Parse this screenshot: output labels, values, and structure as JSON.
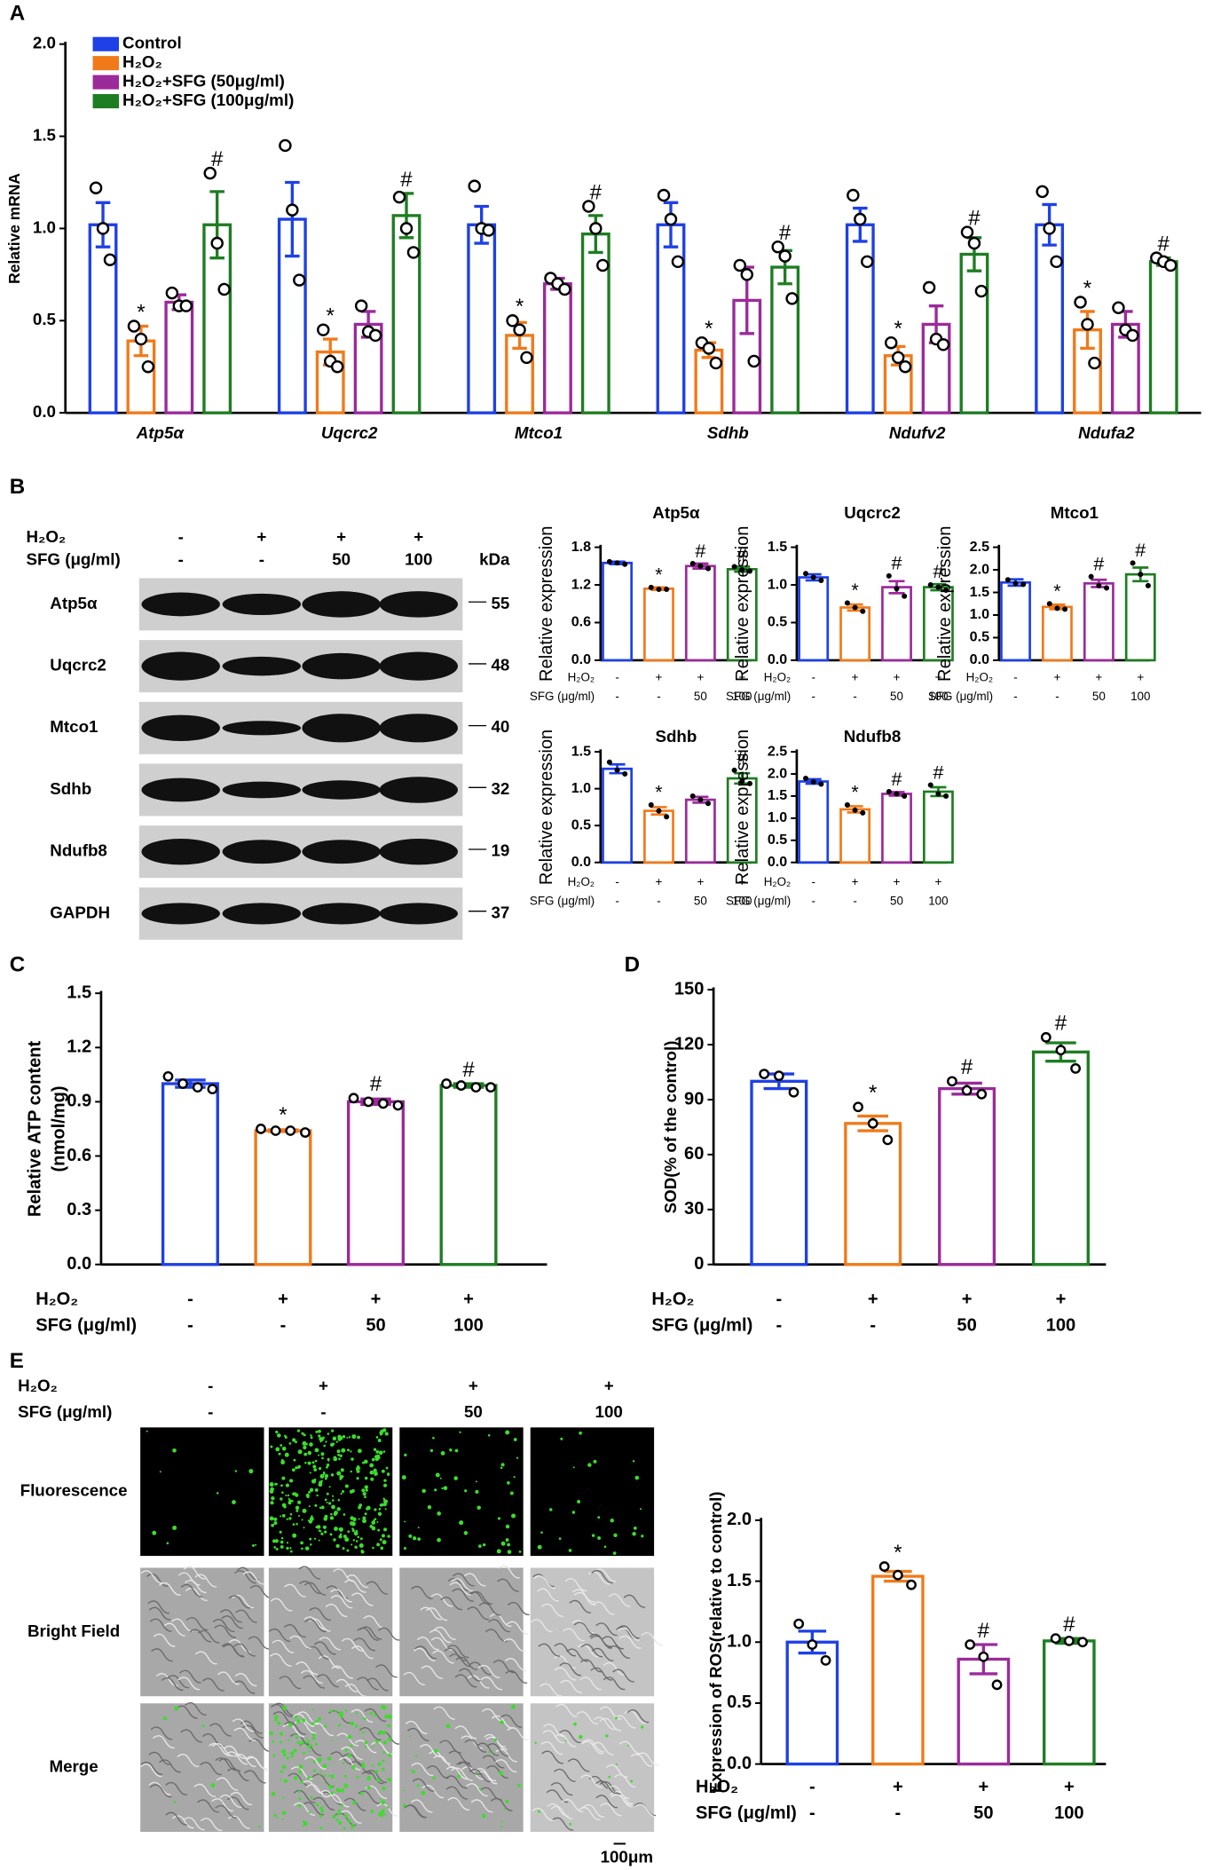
{
  "panel_labels": [
    "A",
    "B",
    "C",
    "D",
    "E"
  ],
  "chart_data": [
    {
      "type": "bar",
      "ylabel": "Relative mRNA",
      "legend": "top-left",
      "categories": [
        "Atp5α",
        "Uqcrc2",
        "Mtco1",
        "Sdhb",
        "Ndufv2",
        "Ndufa2"
      ],
      "ylim": [
        0,
        2
      ],
      "yticks": [
        {
          "value": 0,
          "label": "0.0"
        },
        0.5,
        {
          "value": 1,
          "label": "1.0"
        },
        1.5,
        {
          "value": 2,
          "label": "2.0"
        }
      ],
      "series": [
        {
          "name": "Control",
          "color": "#1e40e6",
          "values": [
            1.02,
            1.05,
            1.02,
            1.02,
            1.02,
            1.02
          ],
          "errors": [
            0.12,
            0.2,
            0.1,
            0.12,
            0.09,
            0.11
          ],
          "points": [
            [
              1.22,
              1.0,
              0.83
            ],
            [
              1.45,
              1.1,
              0.72
            ],
            [
              1.23,
              1.0,
              0.99
            ],
            [
              1.18,
              1.05,
              0.82
            ],
            [
              1.18,
              1.05,
              0.82
            ],
            [
              1.2,
              1.0,
              0.82
            ]
          ]
        },
        {
          "name": "H₂O₂",
          "color": "#f07a1a",
          "values": [
            0.39,
            0.33,
            0.42,
            0.34,
            0.31,
            0.45
          ],
          "errors": [
            0.08,
            0.07,
            0.07,
            0.04,
            0.05,
            0.1
          ],
          "points": [
            [
              0.47,
              0.4,
              0.25
            ],
            [
              0.45,
              0.28,
              0.25
            ],
            [
              0.5,
              0.45,
              0.3
            ],
            [
              0.38,
              0.35,
              0.27
            ],
            [
              0.38,
              0.3,
              0.25
            ],
            [
              0.6,
              0.48,
              0.27
            ]
          ],
          "markers": [
            "*",
            "*",
            "*",
            "*",
            "*",
            "*"
          ]
        },
        {
          "name": "H₂O₂+SFG (50μg/ml)",
          "color": "#9b2a9b",
          "values": [
            0.6,
            0.48,
            0.7,
            0.61,
            0.48,
            0.48
          ],
          "errors": [
            0.04,
            0.07,
            0.03,
            0.18,
            0.1,
            0.07
          ],
          "points": [
            [
              0.65,
              0.58,
              0.58
            ],
            [
              0.58,
              0.44,
              0.42
            ],
            [
              0.73,
              0.7,
              0.67
            ],
            [
              0.8,
              0.75,
              0.28
            ],
            [
              0.68,
              0.4,
              0.37
            ],
            [
              0.57,
              0.45,
              0.42
            ]
          ]
        },
        {
          "name": "H₂O₂+SFG (100μg/ml)",
          "color": "#1e7d22",
          "values": [
            1.02,
            1.07,
            0.97,
            0.79,
            0.86,
            0.82
          ],
          "errors": [
            0.18,
            0.12,
            0.1,
            0.09,
            0.09,
            0.02
          ],
          "points": [
            [
              1.3,
              0.92,
              0.67
            ],
            [
              1.17,
              1.0,
              0.87
            ],
            [
              1.12,
              1.0,
              0.8
            ],
            [
              0.9,
              0.85,
              0.62
            ],
            [
              0.98,
              0.92,
              0.66
            ],
            [
              0.84,
              0.82,
              0.8
            ]
          ],
          "markers": [
            "#",
            "#",
            "#",
            "#",
            "#",
            "#"
          ]
        }
      ]
    },
    {
      "type": "bar",
      "title": "Atp5α",
      "ylabel": "Relative expression",
      "ylim": [
        0,
        1.8
      ],
      "yticks": [
        {
          "value": 0,
          "label": "0.0"
        },
        0.6,
        1.2,
        1.8
      ],
      "colors": [
        "#1e40e6",
        "#f07a1a",
        "#9b2a9b",
        "#1e7d22"
      ],
      "values": [
        1.55,
        1.14,
        1.5,
        1.45
      ],
      "errors": [
        0.02,
        0.02,
        0.04,
        0.04
      ],
      "points": [
        [
          1.57,
          1.55,
          1.53
        ],
        [
          1.16,
          1.13,
          1.13
        ],
        [
          1.54,
          1.5,
          1.46
        ],
        [
          1.49,
          1.44,
          1.42
        ]
      ],
      "markers": [
        null,
        "*",
        "#",
        "#"
      ],
      "treatments": [
        {
          "label": "H₂O₂",
          "values": [
            "-",
            "+",
            "+",
            "+"
          ]
        },
        {
          "label": "SFG (μg/ml)",
          "values": [
            "-",
            "-",
            "50",
            "100"
          ]
        }
      ]
    },
    {
      "type": "bar",
      "title": "Uqcrc2",
      "ylabel": "Relative expression",
      "ylim": [
        0,
        1.5
      ],
      "yticks": [
        {
          "value": 0,
          "label": "0.0"
        },
        0.5,
        {
          "value": 1,
          "label": "1.0"
        },
        1.5
      ],
      "colors": [
        "#1e40e6",
        "#f07a1a",
        "#9b2a9b",
        "#1e7d22"
      ],
      "values": [
        1.1,
        0.7,
        0.97,
        0.97
      ],
      "errors": [
        0.04,
        0.04,
        0.08,
        0.04
      ],
      "points": [
        [
          1.15,
          1.1,
          1.06
        ],
        [
          0.76,
          0.7,
          0.65
        ],
        [
          1.12,
          0.95,
          0.85
        ],
        [
          1.0,
          0.97,
          0.93
        ]
      ],
      "markers": [
        null,
        "*",
        "#",
        "#"
      ],
      "treatments": [
        {
          "label": "H₂O₂",
          "values": [
            "-",
            "+",
            "+",
            "+"
          ]
        },
        {
          "label": "SFG (μg/ml)",
          "values": [
            "-",
            "-",
            "50",
            "100"
          ]
        }
      ]
    },
    {
      "type": "bar",
      "title": "Mtco1",
      "ylabel": "Relative expression",
      "ylim": [
        0,
        2.5
      ],
      "yticks": [
        {
          "value": 0,
          "label": "0.0"
        },
        0.5,
        {
          "value": 1,
          "label": "1.0"
        },
        1.5,
        {
          "value": 2,
          "label": "2.0"
        },
        2.5
      ],
      "colors": [
        "#1e40e6",
        "#f07a1a",
        "#9b2a9b",
        "#1e7d22"
      ],
      "values": [
        1.72,
        1.18,
        1.7,
        1.9
      ],
      "errors": [
        0.07,
        0.05,
        0.08,
        0.15
      ],
      "points": [
        [
          1.78,
          1.7,
          1.68
        ],
        [
          1.25,
          1.15,
          1.13
        ],
        [
          1.85,
          1.65,
          1.6
        ],
        [
          2.15,
          1.9,
          1.65
        ]
      ],
      "markers": [
        null,
        "*",
        "#",
        "#"
      ],
      "treatments": [
        {
          "label": "H₂O₂",
          "values": [
            "-",
            "+",
            "+",
            "+"
          ]
        },
        {
          "label": "SFG (μg/ml)",
          "values": [
            "-",
            "-",
            "50",
            "100"
          ]
        }
      ]
    },
    {
      "type": "bar",
      "title": "Sdhb",
      "ylabel": "Relative expression",
      "ylim": [
        0,
        1.5
      ],
      "yticks": [
        {
          "value": 0,
          "label": "0.0"
        },
        0.5,
        {
          "value": 1,
          "label": "1.0"
        },
        1.5
      ],
      "colors": [
        "#1e40e6",
        "#f07a1a",
        "#9b2a9b",
        "#1e7d22"
      ],
      "values": [
        1.27,
        0.7,
        0.85,
        1.14
      ],
      "errors": [
        0.06,
        0.05,
        0.04,
        0.07
      ],
      "points": [
        [
          1.36,
          1.25,
          1.2
        ],
        [
          0.78,
          0.7,
          0.62
        ],
        [
          0.9,
          0.85,
          0.8
        ],
        [
          1.25,
          1.1,
          1.07
        ]
      ],
      "markers": [
        null,
        "*",
        null,
        "#"
      ],
      "treatments": [
        {
          "label": "H₂O₂",
          "values": [
            "-",
            "+",
            "+",
            "+"
          ]
        },
        {
          "label": "SFG (μg/ml)",
          "values": [
            "-",
            "-",
            "50",
            "100"
          ]
        }
      ]
    },
    {
      "type": "bar",
      "title": "Ndufb8",
      "ylabel": "Relative expression",
      "ylim": [
        0,
        2.5
      ],
      "yticks": [
        {
          "value": 0,
          "label": "0.0"
        },
        0.5,
        {
          "value": 1,
          "label": "1.0"
        },
        1.5,
        {
          "value": 2,
          "label": "2.0"
        },
        2.5
      ],
      "colors": [
        "#1e40e6",
        "#f07a1a",
        "#9b2a9b",
        "#1e7d22"
      ],
      "values": [
        1.83,
        1.2,
        1.55,
        1.6
      ],
      "errors": [
        0.05,
        0.07,
        0.04,
        0.1
      ],
      "points": [
        [
          1.9,
          1.82,
          1.77
        ],
        [
          1.3,
          1.18,
          1.12
        ],
        [
          1.6,
          1.55,
          1.5
        ],
        [
          1.75,
          1.55,
          1.5
        ]
      ],
      "markers": [
        null,
        "*",
        "#",
        "#"
      ],
      "treatments": [
        {
          "label": "H₂O₂",
          "values": [
            "-",
            "+",
            "+",
            "+"
          ]
        },
        {
          "label": "SFG (μg/ml)",
          "values": [
            "-",
            "-",
            "50",
            "100"
          ]
        }
      ]
    },
    {
      "type": "bar",
      "ylabel": [
        "Relative ATP content",
        "(nmol/mg)"
      ],
      "ylim": [
        0,
        1.5
      ],
      "yticks": [
        {
          "value": 0,
          "label": "0.0"
        },
        0.3,
        0.6,
        0.9,
        1.2,
        1.5
      ],
      "colors": [
        "#1e40e6",
        "#f07a1a",
        "#9b2a9b",
        "#1e7d22"
      ],
      "values": [
        1.0,
        0.74,
        0.9,
        0.99
      ],
      "errors": [
        0.02,
        0.005,
        0.015,
        0.01
      ],
      "points": [
        [
          1.04,
          1.0,
          0.98,
          0.97
        ],
        [
          0.75,
          0.74,
          0.74,
          0.73
        ],
        [
          0.92,
          0.9,
          0.89,
          0.88
        ],
        [
          1.0,
          0.99,
          0.98,
          0.98
        ]
      ],
      "markers": [
        null,
        "*",
        "#",
        "#"
      ],
      "treatments": [
        {
          "label": "H₂O₂",
          "values": [
            "-",
            "+",
            "+",
            "+"
          ]
        },
        {
          "label": "SFG (μg/ml)",
          "values": [
            "-",
            "-",
            "50",
            "100"
          ]
        }
      ]
    },
    {
      "type": "bar",
      "ylabel": "SOD(% of the control)",
      "ylim": [
        0,
        150
      ],
      "yticks": [
        0,
        30,
        60,
        90,
        120,
        150
      ],
      "colors": [
        "#1e40e6",
        "#f07a1a",
        "#9b2a9b",
        "#1e7d22"
      ],
      "values": [
        100,
        77,
        96,
        116
      ],
      "errors": [
        4,
        4,
        3,
        5
      ],
      "points": [
        [
          104,
          103,
          94
        ],
        [
          86,
          77,
          68
        ],
        [
          100,
          95,
          93
        ],
        [
          124,
          117,
          107
        ]
      ],
      "markers": [
        null,
        "*",
        "#",
        "#"
      ],
      "treatments": [
        {
          "label": "H₂O₂",
          "values": [
            "-",
            "+",
            "+",
            "+"
          ]
        },
        {
          "label": "SFG (μg/ml)",
          "values": [
            "-",
            "-",
            "50",
            "100"
          ]
        }
      ]
    },
    {
      "type": "bar",
      "ylabel": "Expression of ROS(relative to control)",
      "ylim": [
        0,
        2
      ],
      "yticks": [
        {
          "value": 0,
          "label": "0.0"
        },
        0.5,
        {
          "value": 1,
          "label": "1.0"
        },
        1.5,
        {
          "value": 2,
          "label": "2.0"
        }
      ],
      "colors": [
        "#1e40e6",
        "#f07a1a",
        "#9b2a9b",
        "#1e7d22"
      ],
      "values": [
        1.0,
        1.54,
        0.86,
        1.01
      ],
      "errors": [
        0.09,
        0.04,
        0.12,
        0.02
      ],
      "points": [
        [
          1.15,
          0.98,
          0.85
        ],
        [
          1.62,
          1.55,
          1.47
        ],
        [
          0.98,
          0.88,
          0.65
        ],
        [
          1.03,
          1.01,
          1.0
        ]
      ],
      "markers": [
        null,
        "*",
        "#",
        "#"
      ],
      "treatments": [
        {
          "label": "H₂O₂",
          "values": [
            "-",
            "+",
            "+",
            "+"
          ]
        },
        {
          "label": "SFG (μg/ml)",
          "values": [
            "-",
            "-",
            "50",
            "100"
          ]
        }
      ]
    }
  ],
  "blot": {
    "treatments": [
      {
        "label": "H₂O₂",
        "values": [
          "-",
          "+",
          "+",
          "+"
        ]
      },
      {
        "label": "SFG (μg/ml)",
        "values": [
          "-",
          "-",
          "50",
          "100"
        ]
      }
    ],
    "size_header": "kDa",
    "rows": [
      {
        "protein": "Atp5α",
        "kda": "55"
      },
      {
        "protein": "Uqcrc2",
        "kda": "48"
      },
      {
        "protein": "Mtco1",
        "kda": "40"
      },
      {
        "protein": "Sdhb",
        "kda": "32"
      },
      {
        "protein": "Ndufb8",
        "kda": "19"
      },
      {
        "protein": "GAPDH",
        "kda": "37"
      }
    ]
  },
  "imaging": {
    "treatments": [
      {
        "label": "H₂O₂",
        "values": [
          "-",
          "+",
          "+",
          "+"
        ]
      },
      {
        "label": "SFG (μg/ml)",
        "values": [
          "-",
          "-",
          "50",
          "100"
        ]
      }
    ],
    "rows": [
      "Fluorescence",
      "Bright Field",
      "Merge"
    ],
    "scale_bar": "100μm"
  }
}
